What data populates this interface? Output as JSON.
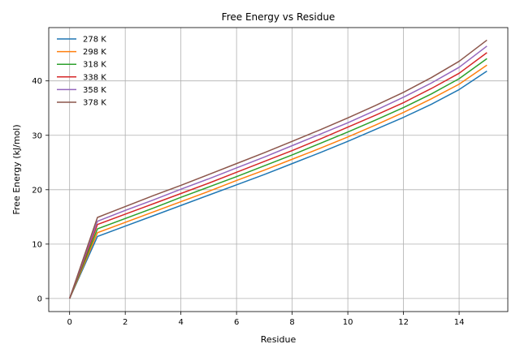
{
  "chart_data": {
    "type": "line",
    "title": "Free Energy vs Residue",
    "xlabel": "Residue",
    "ylabel": "Free Energy (kJ/mol)",
    "x": [
      0,
      1,
      2,
      3,
      4,
      5,
      6,
      7,
      8,
      9,
      10,
      11,
      12,
      13,
      14,
      15
    ],
    "xlim": [
      -0.75,
      15.75
    ],
    "ylim": [
      -2.4,
      49.8
    ],
    "xticks": [
      0,
      2,
      4,
      6,
      8,
      10,
      12,
      14
    ],
    "yticks": [
      0,
      10,
      20,
      30,
      40
    ],
    "grid": true,
    "legend_position": "upper-left",
    "series": [
      {
        "name": "278 K",
        "color": "#1f77b4",
        "values": [
          0,
          11.4,
          13.3,
          15.2,
          17.1,
          19.0,
          20.9,
          22.8,
          24.8,
          26.8,
          28.9,
          31.1,
          33.3,
          35.7,
          38.4,
          41.8
        ]
      },
      {
        "name": "298 K",
        "color": "#ff7f0e",
        "values": [
          0,
          12.1,
          14.0,
          15.9,
          17.8,
          19.7,
          21.7,
          23.6,
          25.6,
          27.6,
          29.7,
          31.9,
          34.2,
          36.7,
          39.4,
          42.9
        ]
      },
      {
        "name": "318 K",
        "color": "#2ca02c",
        "values": [
          0,
          12.8,
          14.7,
          16.6,
          18.6,
          20.5,
          22.4,
          24.4,
          26.4,
          28.5,
          30.6,
          32.8,
          35.1,
          37.6,
          40.4,
          44.1
        ]
      },
      {
        "name": "338 K",
        "color": "#d62728",
        "values": [
          0,
          13.6,
          15.5,
          17.4,
          19.3,
          21.2,
          23.2,
          25.2,
          27.2,
          29.3,
          31.5,
          33.7,
          36.0,
          38.6,
          41.4,
          45.2
        ]
      },
      {
        "name": "358 K",
        "color": "#9467bd",
        "values": [
          0,
          14.2,
          16.2,
          18.1,
          20.1,
          22.0,
          24.0,
          26.0,
          28.1,
          30.2,
          32.3,
          34.6,
          37.0,
          39.6,
          42.5,
          46.4
        ]
      },
      {
        "name": "378 K",
        "color": "#8c564b",
        "values": [
          0,
          14.9,
          16.9,
          18.9,
          20.8,
          22.8,
          24.8,
          26.8,
          28.9,
          31.0,
          33.2,
          35.5,
          37.9,
          40.6,
          43.6,
          47.5
        ]
      }
    ]
  }
}
